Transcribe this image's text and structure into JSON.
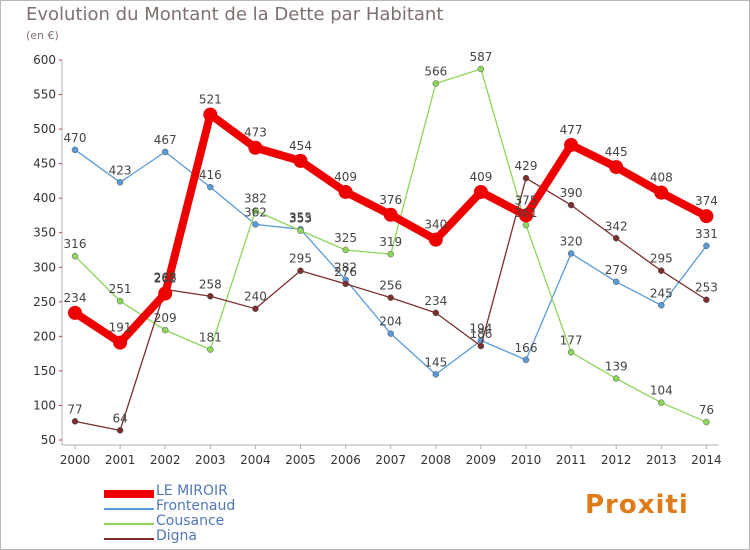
{
  "title": "Evolution du Montant de la Dette par Habitant",
  "subtitle": "(en €)",
  "logo_text": "Proxiti",
  "colors": {
    "axis": "#b0b0b0",
    "tick_text": "#333333",
    "label_text": "#444444",
    "legend_text": "#5078b8",
    "title": "#7f6f6f"
  },
  "chart_data": {
    "type": "line",
    "xlabel": "",
    "ylabel": "",
    "ylim": [
      50,
      600
    ],
    "yticks": [
      "50",
      "100",
      "150",
      "200",
      "250",
      "300",
      "350",
      "400",
      "450",
      "500",
      "550",
      "600"
    ],
    "categories": [
      "2000",
      "2001",
      "2002",
      "2003",
      "2004",
      "2005",
      "2006",
      "2007",
      "2008",
      "2009",
      "2010",
      "2011",
      "2012",
      "2013",
      "2014"
    ],
    "legend_position": "bottom-left",
    "series": [
      {
        "name": "LE MIROIR",
        "color": "#ee0000",
        "thick": true,
        "values": [
          234,
          191,
          262,
          521,
          473,
          454,
          409,
          376,
          340,
          409,
          375,
          477,
          445,
          408,
          374
        ]
      },
      {
        "name": "Frontenaud",
        "color": "#5a9ad5",
        "thick": false,
        "values": [
          470,
          423,
          467,
          416,
          362,
          355,
          282,
          204,
          145,
          194,
          166,
          320,
          279,
          245,
          331
        ]
      },
      {
        "name": "Cousance",
        "color": "#8ed65a",
        "thick": false,
        "values": [
          316,
          251,
          209,
          181,
          382,
          353,
          325,
          319,
          566,
          587,
          361,
          177,
          139,
          104,
          76
        ]
      },
      {
        "name": "Digna",
        "color": "#7a2e2e",
        "thick": false,
        "values": [
          77,
          64,
          268,
          258,
          240,
          295,
          276,
          256,
          234,
          186,
          429,
          390,
          342,
          295,
          253
        ]
      }
    ]
  }
}
